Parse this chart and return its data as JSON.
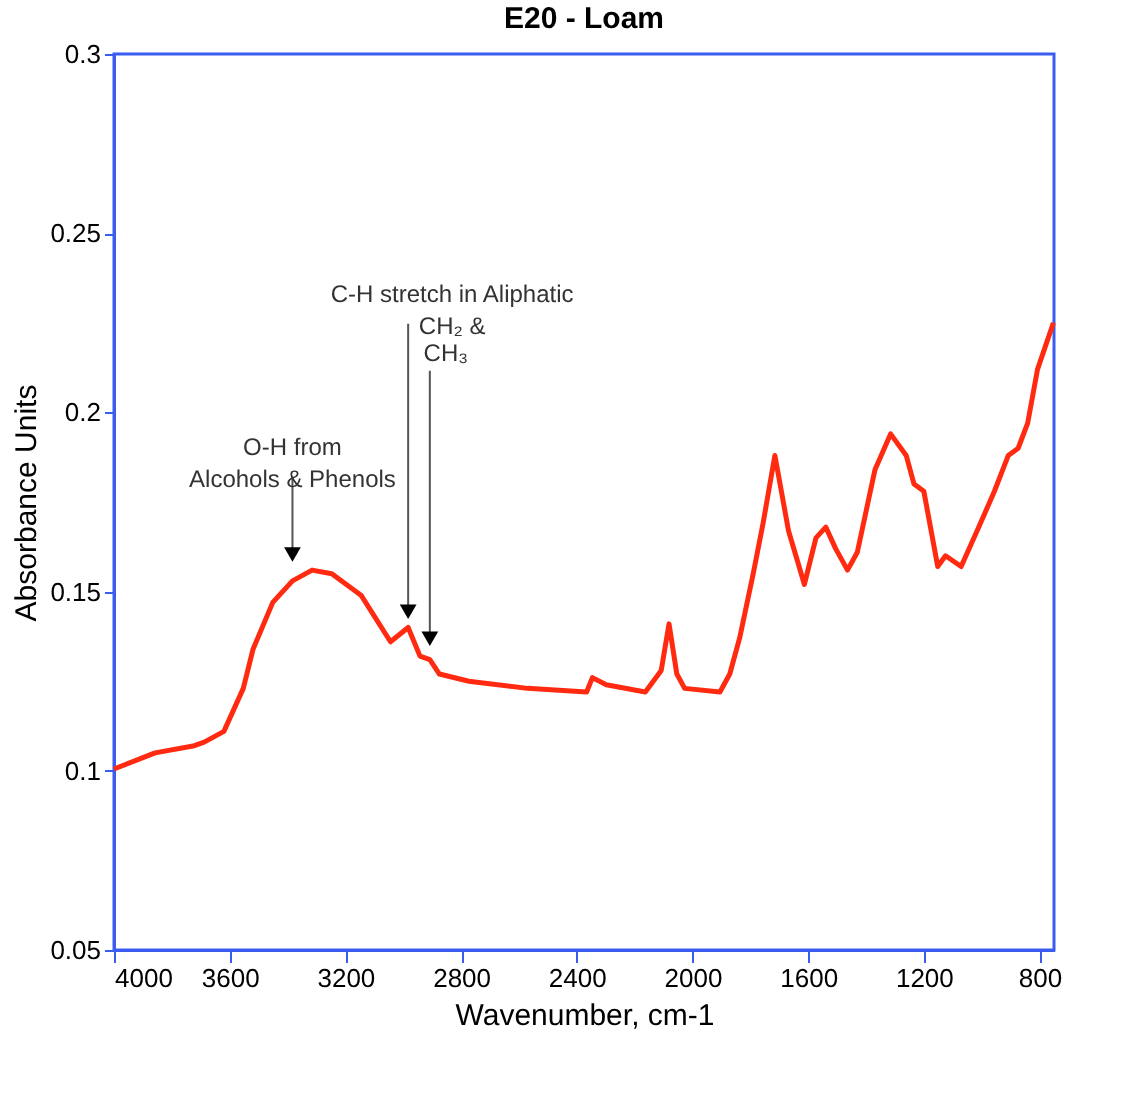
{
  "chart_data": {
    "type": "line",
    "title": "E20 - Loam",
    "xlabel": "Wavenumber, cm-1",
    "ylabel": "Absorbance Units",
    "xlim": [
      4000,
      750
    ],
    "xticks": [
      4000,
      3600,
      3200,
      2800,
      2400,
      2000,
      1600,
      1200,
      800
    ],
    "ylim": [
      0.05,
      0.3
    ],
    "yticks": [
      0.05,
      0.1,
      0.15,
      0.2,
      0.25,
      0.3
    ],
    "grid": false,
    "marker": "none",
    "line_style": "solid",
    "x": [
      4000,
      3858,
      3722,
      3688,
      3620,
      3553,
      3519,
      3451,
      3383,
      3315,
      3247,
      3146,
      3044,
      2983,
      2942,
      2908,
      2875,
      2773,
      2570,
      2366,
      2346,
      2298,
      2163,
      2108,
      2081,
      2054,
      2027,
      1905,
      1871,
      1837,
      1790,
      1756,
      1715,
      1668,
      1613,
      1573,
      1539,
      1505,
      1464,
      1430,
      1369,
      1315,
      1261,
      1234,
      1200,
      1152,
      1125,
      1071,
      1010,
      956,
      908,
      874,
      841,
      807,
      752
    ],
    "series": [
      {
        "color": "#ff2a10",
        "values": [
          0.1005,
          0.105,
          0.107,
          0.108,
          0.111,
          0.123,
          0.134,
          0.147,
          0.153,
          0.156,
          0.155,
          0.149,
          0.136,
          0.14,
          0.132,
          0.131,
          0.127,
          0.125,
          0.123,
          0.122,
          0.126,
          0.124,
          0.122,
          0.128,
          0.141,
          0.127,
          0.123,
          0.122,
          0.127,
          0.137,
          0.155,
          0.169,
          0.188,
          0.167,
          0.152,
          0.165,
          0.168,
          0.162,
          0.156,
          0.161,
          0.184,
          0.194,
          0.188,
          0.18,
          0.178,
          0.157,
          0.16,
          0.157,
          0.168,
          0.178,
          0.188,
          0.19,
          0.197,
          0.212,
          0.225
        ]
      }
    ],
    "annotations": [
      {
        "text": "O-H from\nAlcohols & Phenols",
        "x": 3383,
        "y": 0.157
      },
      {
        "text": "C-H stretch in Aliphatic\nCH₂ &",
        "x": 2983,
        "y": 0.141
      },
      {
        "text": "CH₃",
        "x": 2908,
        "y": 0.1335
      }
    ]
  }
}
